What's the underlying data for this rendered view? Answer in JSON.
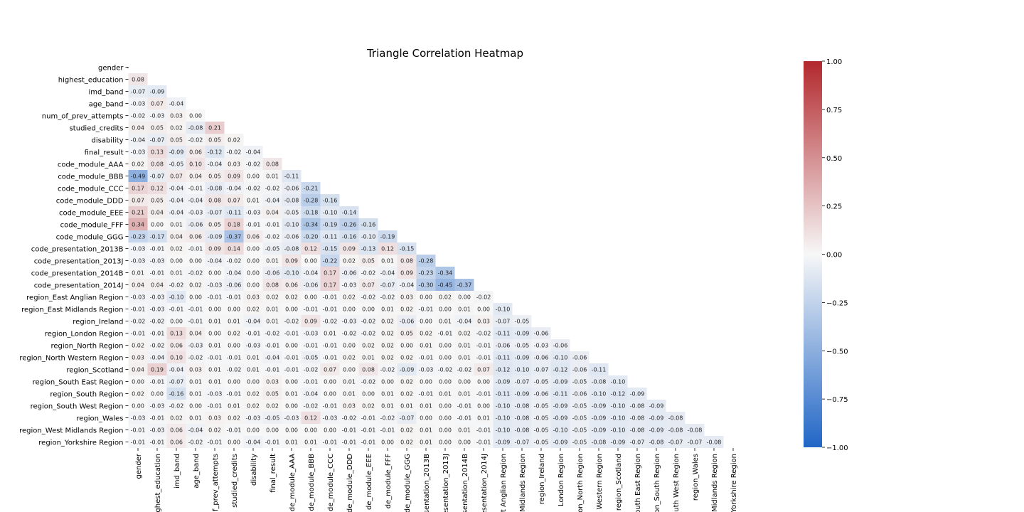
{
  "chart_data": {
    "type": "heatmap",
    "title": "Triangle Correlation Heatmap",
    "mask": "upper-triangle",
    "diagonal_label": "-",
    "labels": [
      "gender",
      "highest_education",
      "imd_band",
      "age_band",
      "num_of_prev_attempts",
      "studied_credits",
      "disability",
      "final_result",
      "code_module_AAA",
      "code_module_BBB",
      "code_module_CCC",
      "code_module_DDD",
      "code_module_EEE",
      "code_module_FFF",
      "code_module_GGG",
      "code_presentation_2013B",
      "code_presentation_2013J",
      "code_presentation_2014B",
      "code_presentation_2014J",
      "region_East Anglian Region",
      "region_East Midlands Region",
      "region_Ireland",
      "region_London Region",
      "region_North Region",
      "region_North Western Region",
      "region_Scotland",
      "region_South East Region",
      "region_South Region",
      "region_South West Region",
      "region_Wales",
      "region_West Midlands Region",
      "region_Yorkshire Region"
    ],
    "x_tick_labels": [
      "gender",
      "ighest_education",
      "imd_band",
      "age_band",
      "f_prev_attempts",
      "studied_credits",
      "disability",
      "final_result",
      "de_module_AAA",
      "de_module_BBB",
      "de_module_CCC",
      "de_module_DDD",
      "de_module_EEE",
      "de_module_FFF",
      "de_module_GGG",
      "esentation_2013B",
      "esentation_2013J",
      "esentation_2014B",
      "esentation_2014J",
      "t Anglian Region",
      "Midlands Region",
      "region_Ireland",
      "London Region",
      "on_North Region",
      "Western Region",
      "region_Scotland",
      "outh East Region",
      "on_South Region",
      "outh West Region",
      "region_Wales",
      "Midlands Region",
      "Yorkshire Region"
    ],
    "rows": [
      [],
      [
        0.08
      ],
      [
        -0.07,
        -0.09
      ],
      [
        -0.03,
        0.07,
        -0.04
      ],
      [
        -0.02,
        -0.03,
        0.03,
        0.0
      ],
      [
        0.04,
        0.05,
        0.02,
        -0.08,
        0.21
      ],
      [
        -0.04,
        -0.07,
        0.05,
        -0.02,
        0.05,
        0.02
      ],
      [
        -0.03,
        0.13,
        -0.09,
        0.06,
        -0.12,
        -0.02,
        -0.04
      ],
      [
        0.02,
        0.08,
        -0.05,
        0.1,
        -0.04,
        0.03,
        -0.02,
        0.08
      ],
      [
        -0.49,
        -0.07,
        0.07,
        0.04,
        0.05,
        0.09,
        0.0,
        0.01,
        -0.11
      ],
      [
        0.17,
        0.12,
        -0.04,
        -0.01,
        -0.08,
        -0.04,
        -0.02,
        -0.02,
        -0.06,
        -0.21
      ],
      [
        0.07,
        0.05,
        -0.04,
        -0.04,
        0.08,
        0.07,
        0.01,
        -0.04,
        -0.08,
        -0.28,
        -0.16
      ],
      [
        0.21,
        0.04,
        -0.04,
        -0.03,
        -0.07,
        -0.11,
        -0.03,
        0.04,
        -0.05,
        -0.18,
        -0.1,
        -0.14
      ],
      [
        0.34,
        -0.0,
        0.01,
        -0.06,
        0.05,
        0.18,
        -0.01,
        -0.01,
        -0.1,
        -0.34,
        -0.19,
        -0.26,
        -0.16
      ],
      [
        -0.23,
        -0.17,
        0.04,
        0.06,
        -0.09,
        -0.37,
        0.06,
        -0.02,
        -0.06,
        -0.2,
        -0.11,
        -0.16,
        -0.1,
        -0.19
      ],
      [
        -0.03,
        -0.01,
        0.02,
        -0.01,
        0.09,
        0.14,
        0.0,
        -0.05,
        -0.08,
        0.12,
        -0.15,
        0.09,
        -0.13,
        0.12,
        -0.15
      ],
      [
        -0.03,
        -0.03,
        -0.0,
        -0.0,
        -0.04,
        -0.02,
        -0.0,
        0.01,
        0.09,
        0.0,
        -0.22,
        0.02,
        0.05,
        0.01,
        0.08,
        -0.28
      ],
      [
        0.01,
        -0.01,
        0.01,
        -0.02,
        0.0,
        -0.04,
        0.0,
        -0.06,
        -0.1,
        -0.04,
        0.17,
        -0.06,
        -0.02,
        -0.04,
        0.09,
        -0.23,
        -0.34
      ],
      [
        0.04,
        0.04,
        -0.02,
        0.02,
        -0.03,
        -0.06,
        -0.0,
        0.08,
        0.06,
        -0.06,
        0.17,
        -0.03,
        0.07,
        -0.07,
        -0.04,
        -0.3,
        -0.45,
        -0.37
      ],
      [
        -0.03,
        -0.03,
        -0.1,
        0.0,
        -0.01,
        -0.01,
        0.03,
        0.02,
        0.02,
        -0.0,
        -0.01,
        0.02,
        -0.02,
        -0.02,
        0.03,
        0.0,
        0.02,
        0.0,
        -0.02
      ],
      [
        -0.01,
        -0.03,
        -0.01,
        -0.01,
        -0.0,
        0.0,
        0.02,
        0.01,
        0.0,
        -0.01,
        -0.01,
        -0.0,
        -0.0,
        0.01,
        0.02,
        -0.01,
        -0.0,
        0.01,
        -0.0,
        -0.1
      ],
      [
        -0.02,
        -0.02,
        -0.0,
        -0.01,
        0.01,
        0.01,
        -0.04,
        0.01,
        -0.02,
        0.09,
        -0.02,
        -0.03,
        -0.02,
        0.02,
        -0.06,
        -0.0,
        0.01,
        -0.04,
        0.03,
        -0.07,
        -0.05
      ],
      [
        -0.01,
        -0.01,
        0.13,
        0.04,
        0.0,
        0.02,
        -0.01,
        -0.02,
        -0.01,
        -0.03,
        0.01,
        -0.02,
        -0.02,
        0.02,
        0.05,
        0.02,
        -0.01,
        0.02,
        -0.02,
        -0.11,
        -0.09,
        -0.06
      ],
      [
        0.02,
        -0.02,
        0.06,
        -0.03,
        0.01,
        0.0,
        -0.03,
        -0.01,
        -0.0,
        -0.01,
        -0.01,
        -0.0,
        0.02,
        0.02,
        0.0,
        0.01,
        -0.0,
        0.01,
        -0.01,
        -0.06,
        -0.05,
        -0.03,
        -0.06
      ],
      [
        0.03,
        -0.04,
        0.1,
        -0.02,
        -0.01,
        -0.01,
        0.01,
        -0.04,
        -0.01,
        -0.05,
        -0.01,
        0.02,
        0.01,
        0.02,
        0.02,
        -0.01,
        0.0,
        0.01,
        -0.01,
        -0.11,
        -0.09,
        -0.06,
        -0.1,
        -0.06
      ],
      [
        0.04,
        0.19,
        -0.04,
        0.03,
        0.01,
        -0.02,
        0.01,
        -0.01,
        -0.01,
        -0.02,
        0.07,
        0.0,
        0.08,
        -0.02,
        -0.09,
        -0.03,
        -0.02,
        -0.02,
        0.07,
        -0.12,
        -0.1,
        -0.07,
        -0.12,
        -0.06,
        -0.11
      ],
      [
        -0.0,
        -0.01,
        -0.07,
        0.01,
        0.01,
        -0.0,
        0.0,
        0.03,
        0.0,
        -0.01,
        -0.0,
        0.01,
        -0.02,
        0.0,
        0.02,
        -0.0,
        0.0,
        -0.0,
        -0.0,
        -0.09,
        -0.07,
        -0.05,
        -0.09,
        -0.05,
        -0.08,
        -0.1
      ],
      [
        0.02,
        0.0,
        -0.16,
        0.01,
        -0.03,
        -0.01,
        0.02,
        0.05,
        0.01,
        -0.04,
        -0.0,
        0.01,
        -0.0,
        0.01,
        0.02,
        -0.01,
        0.01,
        0.01,
        -0.01,
        -0.11,
        -0.09,
        -0.06,
        -0.11,
        -0.06,
        -0.1,
        -0.12,
        -0.09
      ],
      [
        -0.0,
        -0.03,
        -0.02,
        -0.0,
        -0.01,
        0.01,
        0.02,
        0.02,
        -0.0,
        -0.02,
        -0.01,
        0.03,
        0.02,
        0.01,
        0.01,
        0.01,
        -0.0,
        -0.01,
        0.0,
        -0.1,
        -0.08,
        -0.05,
        -0.09,
        -0.05,
        -0.09,
        -0.1,
        -0.08,
        -0.09
      ],
      [
        -0.03,
        -0.01,
        0.02,
        0.01,
        0.03,
        0.02,
        -0.03,
        -0.05,
        -0.03,
        0.12,
        -0.03,
        -0.02,
        -0.01,
        -0.02,
        -0.07,
        0.0,
        0.0,
        -0.01,
        0.01,
        -0.1,
        -0.08,
        -0.05,
        -0.09,
        -0.05,
        -0.09,
        -0.1,
        -0.08,
        -0.09,
        -0.08
      ],
      [
        -0.01,
        -0.03,
        0.06,
        -0.04,
        0.02,
        -0.01,
        -0.0,
        -0.0,
        0.0,
        0.0,
        0.0,
        -0.01,
        -0.01,
        -0.01,
        0.02,
        0.01,
        -0.0,
        0.01,
        -0.01,
        -0.1,
        -0.08,
        -0.05,
        -0.1,
        -0.05,
        -0.09,
        -0.1,
        -0.08,
        -0.09,
        -0.08,
        -0.08
      ],
      [
        -0.01,
        -0.01,
        0.06,
        -0.02,
        -0.01,
        0.0,
        -0.04,
        -0.01,
        0.01,
        0.01,
        -0.01,
        -0.01,
        -0.01,
        0.0,
        0.02,
        0.01,
        0.0,
        0.0,
        -0.01,
        -0.09,
        -0.07,
        -0.05,
        -0.09,
        -0.05,
        -0.08,
        -0.09,
        -0.07,
        -0.08,
        -0.07,
        -0.07,
        -0.08
      ]
    ],
    "colorbar": {
      "min": -1.0,
      "max": 1.0,
      "ticks": [
        "1.00",
        "0.75",
        "0.50",
        "0.25",
        "0.00",
        "−0.25",
        "−0.50",
        "−0.75",
        "−1.00"
      ],
      "colors": {
        "negative": "#2166c6",
        "neutral": "#f7f7f7",
        "positive": "#b2282d"
      }
    }
  }
}
